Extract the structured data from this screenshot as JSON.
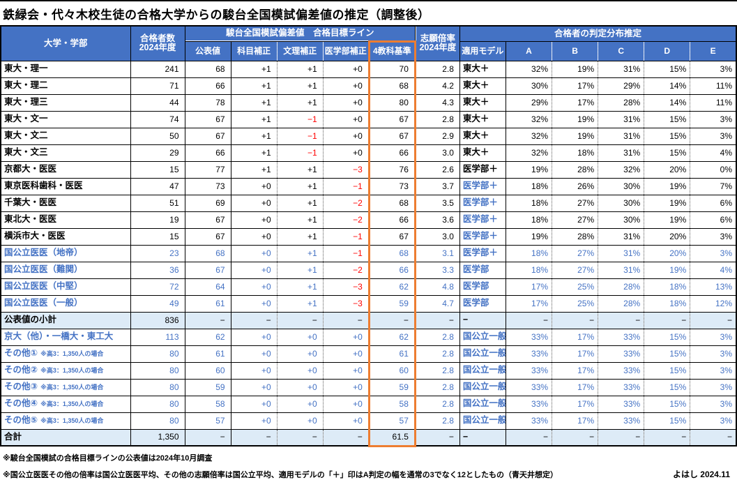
{
  "title": "鉄緑会・代々木校生徒の合格大学からの駿台全国模試偏差値の推定（調整後）",
  "colors": {
    "header_bg": "#4472C4",
    "subtotal_bg": "#DDEBF7",
    "blue_text": "#4472C4",
    "negative_red": "#FF0000",
    "highlight_orange": "#ED7D31"
  },
  "table": {
    "headers": {
      "university": "大学・学部",
      "count_line1": "合格者数",
      "count_line2": "2024年度",
      "hensachi_group": "駿台全国模試偏差値　合格目標ライン",
      "sub1": "公表値",
      "sub2": "科目補正",
      "sub3": "文理補正",
      "sub4": "医学部補正",
      "sub5": "4教科基準",
      "ratio_line1": "志願倍率",
      "ratio_line2": "2024年度",
      "judge_group": "合格者の判定分布推定",
      "jsub1": "適用モデル",
      "jsub2": "A",
      "jsub3": "B",
      "jsub4": "C",
      "jsub5": "D",
      "jsub6": "E"
    },
    "rows": [
      {
        "name": "東大・理一",
        "count": "241",
        "kohyo": "68",
        "kamoku": "+1",
        "bunri": "+1",
        "igakubu": "+0",
        "yonkyoka": "70",
        "ratio": "2.8",
        "model": "東大＋",
        "a": "32%",
        "b": "19%",
        "c": "31%",
        "d": "15%",
        "e": "3%",
        "style": "black",
        "model_blue": false
      },
      {
        "name": "東大・理二",
        "count": "71",
        "kohyo": "66",
        "kamoku": "+1",
        "bunri": "+1",
        "igakubu": "+0",
        "yonkyoka": "68",
        "ratio": "4.2",
        "model": "東大＋",
        "a": "30%",
        "b": "17%",
        "c": "29%",
        "d": "14%",
        "e": "11%",
        "style": "black",
        "model_blue": false
      },
      {
        "name": "東大・理三",
        "count": "44",
        "kohyo": "78",
        "kamoku": "+1",
        "bunri": "+1",
        "igakubu": "+0",
        "yonkyoka": "80",
        "ratio": "4.3",
        "model": "東大＋",
        "a": "29%",
        "b": "17%",
        "c": "28%",
        "d": "14%",
        "e": "11%",
        "style": "black",
        "model_blue": false
      },
      {
        "name": "東大・文一",
        "count": "74",
        "kohyo": "67",
        "kamoku": "+1",
        "bunri": "−1",
        "igakubu": "+0",
        "yonkyoka": "67",
        "ratio": "2.8",
        "model": "東大＋",
        "a": "32%",
        "b": "19%",
        "c": "31%",
        "d": "15%",
        "e": "3%",
        "style": "black",
        "model_blue": false
      },
      {
        "name": "東大・文二",
        "count": "50",
        "kohyo": "67",
        "kamoku": "+1",
        "bunri": "−1",
        "igakubu": "+0",
        "yonkyoka": "67",
        "ratio": "2.9",
        "model": "東大＋",
        "a": "32%",
        "b": "19%",
        "c": "31%",
        "d": "15%",
        "e": "3%",
        "style": "black",
        "model_blue": false
      },
      {
        "name": "東大・文三",
        "count": "29",
        "kohyo": "66",
        "kamoku": "+1",
        "bunri": "−1",
        "igakubu": "+0",
        "yonkyoka": "66",
        "ratio": "3.0",
        "model": "東大＋",
        "a": "32%",
        "b": "18%",
        "c": "31%",
        "d": "15%",
        "e": "4%",
        "style": "black",
        "model_blue": false
      },
      {
        "name": "京都大・医医",
        "count": "15",
        "kohyo": "77",
        "kamoku": "+1",
        "bunri": "+1",
        "igakubu": "−3",
        "yonkyoka": "76",
        "ratio": "2.6",
        "model": "医学部＋",
        "a": "19%",
        "b": "28%",
        "c": "32%",
        "d": "20%",
        "e": "0%",
        "style": "black",
        "model_blue": false
      },
      {
        "name": "東京医科歯科・医医",
        "count": "47",
        "kohyo": "73",
        "kamoku": "+0",
        "bunri": "+1",
        "igakubu": "−1",
        "yonkyoka": "73",
        "ratio": "3.7",
        "model": "医学部＋",
        "a": "18%",
        "b": "26%",
        "c": "30%",
        "d": "19%",
        "e": "7%",
        "style": "black",
        "model_blue": true
      },
      {
        "name": "千葉大・医医",
        "count": "51",
        "kohyo": "69",
        "kamoku": "+0",
        "bunri": "+1",
        "igakubu": "−2",
        "yonkyoka": "68",
        "ratio": "3.5",
        "model": "医学部＋",
        "a": "18%",
        "b": "27%",
        "c": "30%",
        "d": "19%",
        "e": "6%",
        "style": "black",
        "model_blue": true
      },
      {
        "name": "東北大・医医",
        "count": "19",
        "kohyo": "67",
        "kamoku": "+0",
        "bunri": "+1",
        "igakubu": "−2",
        "yonkyoka": "66",
        "ratio": "3.6",
        "model": "医学部＋",
        "a": "18%",
        "b": "27%",
        "c": "30%",
        "d": "19%",
        "e": "6%",
        "style": "black",
        "model_blue": true
      },
      {
        "name": "横浜市大・医医",
        "count": "15",
        "kohyo": "67",
        "kamoku": "+0",
        "bunri": "+1",
        "igakubu": "−1",
        "yonkyoka": "67",
        "ratio": "3.0",
        "model": "医学部＋",
        "a": "19%",
        "b": "28%",
        "c": "31%",
        "d": "20%",
        "e": "3%",
        "style": "black",
        "model_blue": true
      },
      {
        "name": "国公立医医（地帝）",
        "count": "23",
        "kohyo": "68",
        "kamoku": "+0",
        "bunri": "+1",
        "igakubu": "−1",
        "yonkyoka": "68",
        "ratio": "3.1",
        "model": "医学部＋",
        "a": "18%",
        "b": "27%",
        "c": "31%",
        "d": "20%",
        "e": "3%",
        "style": "blue",
        "model_blue": true
      },
      {
        "name": "国公立医医（難関）",
        "count": "36",
        "kohyo": "67",
        "kamoku": "+0",
        "bunri": "+1",
        "igakubu": "−2",
        "yonkyoka": "66",
        "ratio": "3.3",
        "model": "医学部",
        "a": "18%",
        "b": "27%",
        "c": "31%",
        "d": "19%",
        "e": "4%",
        "style": "blue",
        "model_blue": true
      },
      {
        "name": "国公立医医（中堅）",
        "count": "72",
        "kohyo": "64",
        "kamoku": "+0",
        "bunri": "+1",
        "igakubu": "−3",
        "yonkyoka": "62",
        "ratio": "4.8",
        "model": "医学部",
        "a": "17%",
        "b": "25%",
        "c": "28%",
        "d": "18%",
        "e": "13%",
        "style": "blue",
        "model_blue": true
      },
      {
        "name": "国公立医医（一般）",
        "count": "49",
        "kohyo": "61",
        "kamoku": "+0",
        "bunri": "+1",
        "igakubu": "−3",
        "yonkyoka": "59",
        "ratio": "4.7",
        "model": "医学部",
        "a": "17%",
        "b": "25%",
        "c": "28%",
        "d": "18%",
        "e": "12%",
        "style": "blue",
        "model_blue": true
      },
      {
        "name": "公表値の小計",
        "count": "836",
        "kohyo": "−",
        "kamoku": "−",
        "bunri": "−",
        "igakubu": "−",
        "yonkyoka": "−",
        "ratio": "−",
        "model": "−",
        "a": "−",
        "b": "−",
        "c": "−",
        "d": "−",
        "e": "−",
        "style": "subtotal",
        "model_blue": false
      },
      {
        "name": "京大（他）・一橋大・東工大",
        "count": "113",
        "kohyo": "62",
        "kamoku": "+0",
        "bunri": "+0",
        "igakubu": "+0",
        "yonkyoka": "62",
        "ratio": "2.8",
        "model": "国公立一般＋",
        "a": "33%",
        "b": "17%",
        "c": "33%",
        "d": "15%",
        "e": "3%",
        "style": "blue",
        "model_blue": true
      },
      {
        "name": "その他①",
        "note": "※高3：1,350人の場合",
        "count": "80",
        "kohyo": "61",
        "kamoku": "+0",
        "bunri": "+0",
        "igakubu": "+0",
        "yonkyoka": "61",
        "ratio": "2.8",
        "model": "国公立一般",
        "a": "33%",
        "b": "17%",
        "c": "33%",
        "d": "15%",
        "e": "3%",
        "style": "blue",
        "model_blue": true
      },
      {
        "name": "その他②",
        "note": "※高3：1,350人の場合",
        "count": "80",
        "kohyo": "60",
        "kamoku": "+0",
        "bunri": "+0",
        "igakubu": "+0",
        "yonkyoka": "60",
        "ratio": "2.8",
        "model": "国公立一般",
        "a": "33%",
        "b": "17%",
        "c": "33%",
        "d": "15%",
        "e": "3%",
        "style": "blue",
        "model_blue": true
      },
      {
        "name": "その他③",
        "note": "※高3：1,350人の場合",
        "count": "80",
        "kohyo": "59",
        "kamoku": "+0",
        "bunri": "+0",
        "igakubu": "+0",
        "yonkyoka": "59",
        "ratio": "2.8",
        "model": "国公立一般",
        "a": "33%",
        "b": "17%",
        "c": "33%",
        "d": "15%",
        "e": "3%",
        "style": "blue",
        "model_blue": true
      },
      {
        "name": "その他④",
        "note": "※高3：1,350人の場合",
        "count": "80",
        "kohyo": "58",
        "kamoku": "+0",
        "bunri": "+0",
        "igakubu": "+0",
        "yonkyoka": "58",
        "ratio": "2.8",
        "model": "国公立一般",
        "a": "33%",
        "b": "17%",
        "c": "33%",
        "d": "15%",
        "e": "3%",
        "style": "blue",
        "model_blue": true
      },
      {
        "name": "その他⑤",
        "note": "※高3：1,350人の場合",
        "count": "80",
        "kohyo": "57",
        "kamoku": "+0",
        "bunri": "+0",
        "igakubu": "+0",
        "yonkyoka": "57",
        "ratio": "2.8",
        "model": "国公立一般",
        "a": "33%",
        "b": "17%",
        "c": "33%",
        "d": "15%",
        "e": "3%",
        "style": "blue",
        "model_blue": true
      },
      {
        "name": "合計",
        "count": "1,350",
        "kohyo": "−",
        "kamoku": "−",
        "bunri": "−",
        "igakubu": "−",
        "yonkyoka": "61.5",
        "ratio": "−",
        "model": "−",
        "a": "−",
        "b": "−",
        "c": "−",
        "d": "−",
        "e": "−",
        "style": "subtotal",
        "model_blue": false
      }
    ]
  },
  "footnotes": {
    "line1": "※駿台全国模試の合格目標ラインの公表値は2024年10月調査",
    "line2": "※国公立医医その他の倍率は国公立医医平均、その他の志願倍率は国公立平均、適用モデルの「＋」印はA判定の幅を通常の3でなく12としたもの（青天井想定）"
  },
  "credit": "よはし 2024.11"
}
